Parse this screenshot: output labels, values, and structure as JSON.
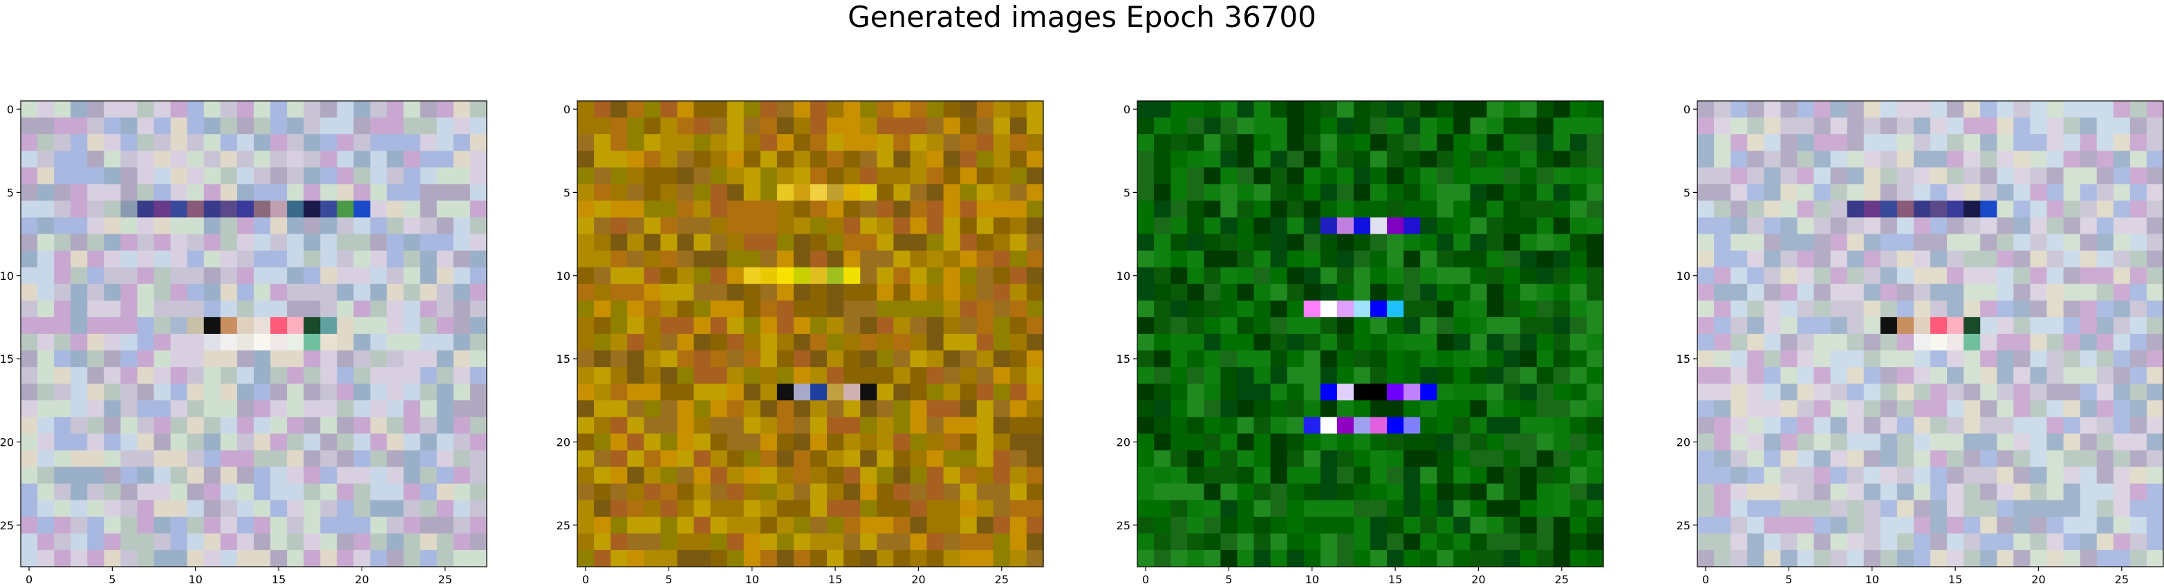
{
  "figure": {
    "title": "Generated images Epoch 36700"
  },
  "chart_data": [
    {
      "type": "heatmap",
      "grid_size": 28,
      "xticks": [
        0,
        5,
        10,
        15,
        20,
        25
      ],
      "yticks": [
        0,
        5,
        10,
        15,
        20,
        25
      ],
      "xlim": [
        -0.5,
        27.5
      ],
      "ylim": [
        27.5,
        -0.5
      ],
      "colors": {
        "palette": [
          "#c8c4d6",
          "#b8c8c0",
          "#d8d0e0",
          "#9ab0c8",
          "#c8a8d0",
          "#e0d8c8",
          "#a8b8e0",
          "#d0e0d0",
          "#b0a8c0",
          "#c8d8e8"
        ]
      },
      "rows": [
        {
          "y": 6,
          "colors": [
            "#c8c4d6",
            "#b8c8c0",
            "#8a9ab0",
            "#3a3a8a",
            "#6a3a8a",
            "#3a4a9a",
            "#8a5a7a",
            "#3a3a8a",
            "#5a4a8a",
            "#3a3a9a",
            "#8a6a7a",
            "#c0a0b0",
            "#3a6a8a",
            "#1a1a4a",
            "#3a4a9a",
            "#4a9a4a",
            "#1a4ac8",
            "#d8d0e0"
          ]
        },
        {
          "y": 13,
          "colors": [
            "#b8c8c0",
            "#a8b8d0",
            "#c8c0a8",
            "#101010",
            "#c89060",
            "#e0d0c0",
            "#e8e0d8",
            "#ff5a7a",
            "#ffb0c0",
            "#1a4a2a",
            "#60a0a0"
          ]
        },
        {
          "y": 14,
          "colors": [
            "#e0e0e8",
            "#f0f0f0",
            "#e8e8e0",
            "#f8f8f0",
            "#f0e8e8",
            "#e8f0e8",
            "#70c0a0",
            "#e8e0d0"
          ]
        }
      ]
    },
    {
      "type": "heatmap",
      "grid_size": 28,
      "xticks": [
        0,
        5,
        10,
        15,
        20,
        25
      ],
      "yticks": [
        0,
        5,
        10,
        15,
        20,
        25
      ],
      "xlim": [
        -0.5,
        27.5
      ],
      "ylim": [
        27.5,
        -0.5
      ],
      "colors": {
        "palette": [
          "#a07800",
          "#b08a00",
          "#8a6400",
          "#c89000",
          "#9a7020",
          "#b07010",
          "#c0a000",
          "#7a5a10",
          "#a86020",
          "#908000"
        ]
      },
      "rows": [
        {
          "y": 5,
          "colors": [
            "#e8c820",
            "#d0a010",
            "#f0d040",
            "#c0a030",
            "#e0b000",
            "#d8c000"
          ]
        },
        {
          "y": 10,
          "colors": [
            "#f0d020",
            "#e8c800",
            "#f8e000",
            "#c8d000",
            "#e0c020",
            "#a0c020",
            "#f0e000"
          ]
        },
        {
          "y": 17,
          "colors": [
            "#101010",
            "#a8a8c8",
            "#2040a0",
            "#c0a040",
            "#d0b0b0",
            "#101010"
          ]
        }
      ]
    },
    {
      "type": "heatmap",
      "grid_size": 28,
      "xticks": [
        0,
        5,
        10,
        15,
        20,
        25
      ],
      "yticks": [
        0,
        5,
        10,
        15,
        20,
        25
      ],
      "xlim": [
        -0.5,
        27.5
      ],
      "ylim": [
        27.5,
        -0.5
      ],
      "colors": {
        "palette": [
          "#006400",
          "#0a7a0a",
          "#005000",
          "#108010",
          "#004a10",
          "#1a6a1a",
          "#007000",
          "#003a00",
          "#208a20",
          "#0a5a0a"
        ]
      },
      "rows": [
        {
          "y": 7,
          "colors": [
            "#2020c0",
            "#c080e0",
            "#1010e0",
            "#e0e0f0",
            "#8000c0",
            "#2010d0"
          ]
        },
        {
          "y": 12,
          "colors": [
            "#ff80ff",
            "#ffffff",
            "#e0a0ff",
            "#a0e0ff",
            "#0000ff",
            "#20c0ff"
          ]
        },
        {
          "y": 17,
          "colors": [
            "#0000ff",
            "#e0d0ff",
            "#000000",
            "#000000",
            "#7000ff",
            "#c080ff",
            "#0000ff"
          ]
        },
        {
          "y": 19,
          "colors": [
            "#2020f0",
            "#ffffff",
            "#9000c0",
            "#a0a0f0",
            "#e060e0",
            "#0000ff",
            "#8080ff"
          ]
        }
      ]
    },
    {
      "type": "heatmap",
      "grid_size": 28,
      "xticks": [
        0,
        5,
        10,
        15,
        20,
        25
      ],
      "yticks": [
        0,
        5,
        10,
        15,
        20,
        25
      ],
      "xlim": [
        -0.5,
        27.5
      ],
      "ylim": [
        27.5,
        -0.5
      ],
      "colors": {
        "palette": [
          "#ccc8d8",
          "#bccac4",
          "#dcd4e2",
          "#a0b4cc",
          "#ccacd2",
          "#e2dccc",
          "#acbce2",
          "#d4e2d4",
          "#b4acc4",
          "#ccdcea"
        ]
      },
      "rows": [
        {
          "y": 6,
          "colors": [
            "#c8c4d6",
            "#3a3a8a",
            "#6a3a8a",
            "#3a4a9a",
            "#8a5a7a",
            "#3a3a8a",
            "#5a4a8a",
            "#3a3a9a",
            "#1a1a4a",
            "#1a4ac8"
          ]
        },
        {
          "y": 13,
          "colors": [
            "#101010",
            "#c89060",
            "#e0d0c0",
            "#ff5a7a",
            "#ffb0c0",
            "#1a4a2a"
          ]
        },
        {
          "y": 14,
          "colors": [
            "#f0f0f0",
            "#f8f8f0",
            "#f0e8e8",
            "#70c0a0"
          ]
        }
      ]
    }
  ]
}
